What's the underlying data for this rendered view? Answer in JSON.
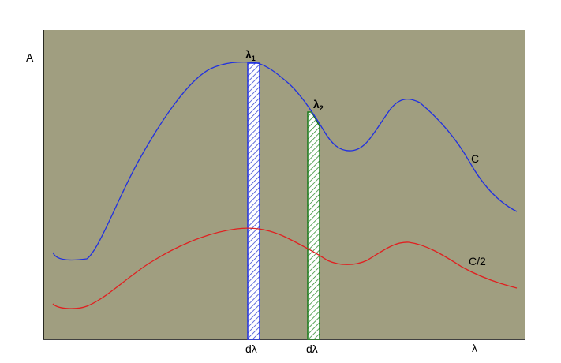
{
  "axes": {
    "y": "A",
    "x": "λ"
  },
  "markers": [
    {
      "symbol": "λ",
      "subscript": "1",
      "width_label": "dλ"
    },
    {
      "symbol": "λ",
      "subscript": "2",
      "width_label": "dλ"
    }
  ],
  "curves": [
    {
      "label": "C"
    },
    {
      "label": "C/2"
    }
  ]
}
